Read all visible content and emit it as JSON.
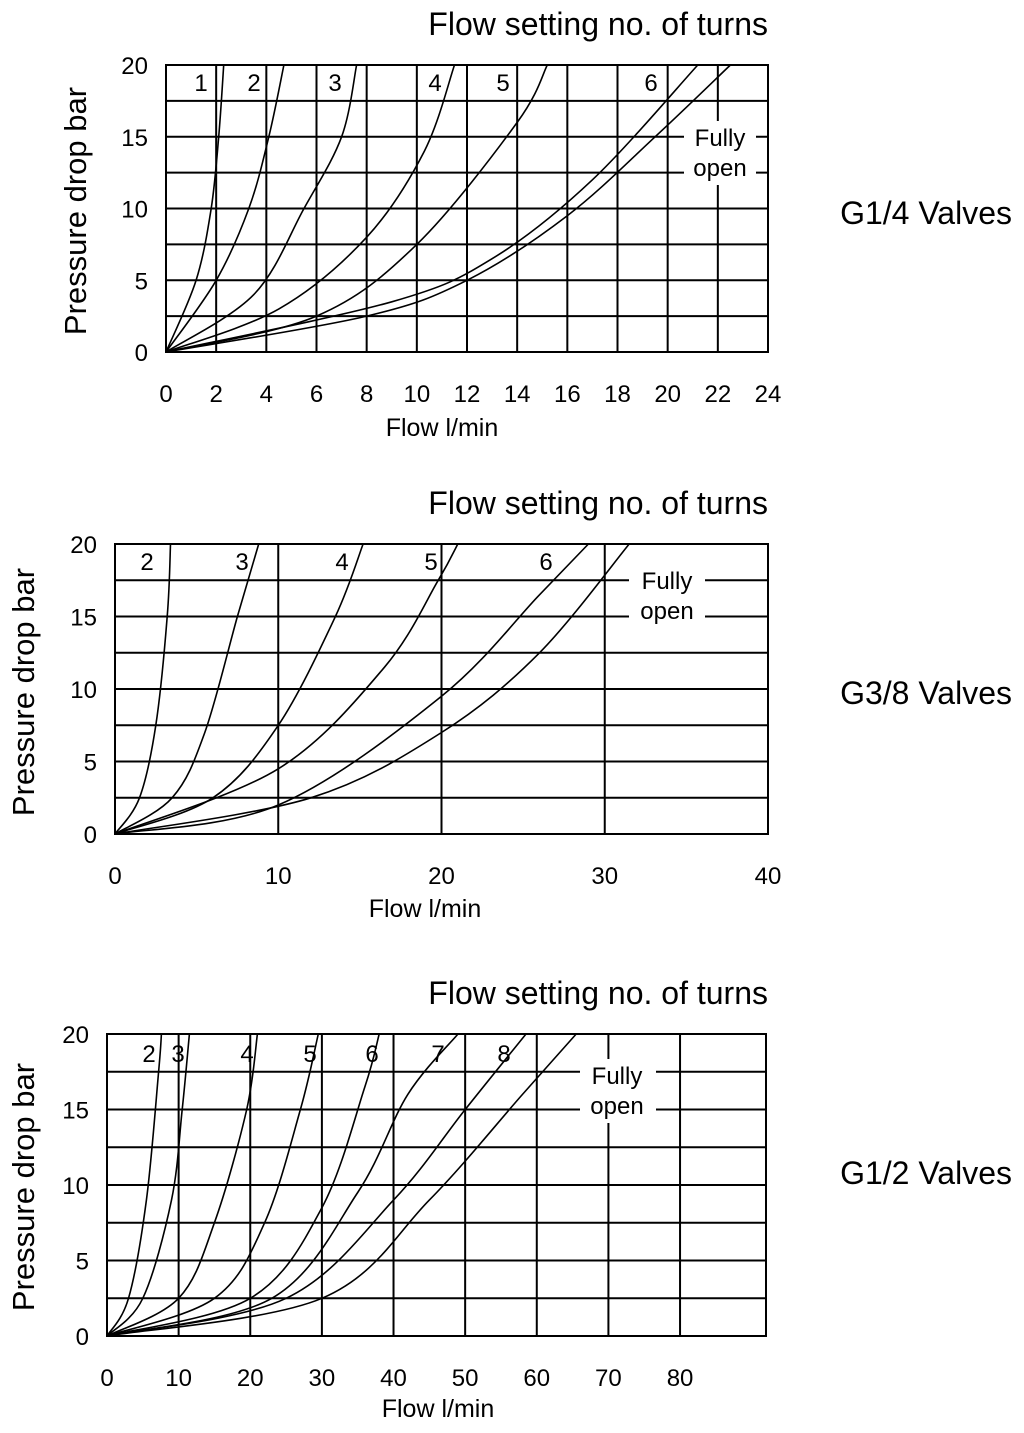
{
  "colors": {
    "background": "#ffffff",
    "ink": "#000000"
  },
  "chart_data": [
    {
      "type": "line",
      "panel_label": "G1/4 Valves",
      "title": "Flow setting no. of turns",
      "xlabel": "Flow l/min",
      "ylabel": "Pressure drop bar",
      "xlim": [
        0,
        24
      ],
      "ylim": [
        0,
        20
      ],
      "x_ticks": [
        0,
        2,
        4,
        6,
        8,
        10,
        12,
        14,
        16,
        18,
        20,
        22,
        24
      ],
      "y_ticks": [
        0,
        5,
        10,
        15,
        20
      ],
      "x_tick_labels": [
        "0",
        "2",
        "4",
        "6",
        "8",
        "10",
        "12",
        "14",
        "16",
        "18",
        "20",
        "22",
        "24"
      ],
      "y_tick_labels": [
        "0",
        "5",
        "10",
        "15",
        "20"
      ],
      "grid": true,
      "series": [
        {
          "name": "1",
          "points": [
            [
              0,
              0
            ],
            [
              1.2,
              5
            ],
            [
              1.8,
              10
            ],
            [
              2.1,
              15
            ],
            [
              2.3,
              20
            ]
          ]
        },
        {
          "name": "2",
          "points": [
            [
              0,
              0
            ],
            [
              2.0,
              5
            ],
            [
              3.3,
              10
            ],
            [
              4.1,
              15
            ],
            [
              4.7,
              20
            ]
          ]
        },
        {
          "name": "3",
          "points": [
            [
              0,
              0
            ],
            [
              3.5,
              4
            ],
            [
              5.5,
              10
            ],
            [
              7.0,
              15
            ],
            [
              7.6,
              20
            ]
          ]
        },
        {
          "name": "4",
          "points": [
            [
              0,
              0
            ],
            [
              4.5,
              3
            ],
            [
              8.0,
              8
            ],
            [
              10.3,
              14
            ],
            [
              11.5,
              20
            ]
          ]
        },
        {
          "name": "5",
          "points": [
            [
              0,
              0
            ],
            [
              6.0,
              2.5
            ],
            [
              10.0,
              7.5
            ],
            [
              14.0,
              16
            ],
            [
              15.2,
              20
            ]
          ]
        },
        {
          "name": "6",
          "points": [
            [
              0,
              0
            ],
            [
              9.0,
              3.5
            ],
            [
              13.0,
              6.5
            ],
            [
              17.0,
              12
            ],
            [
              21.2,
              20
            ]
          ]
        },
        {
          "name": "Fully open",
          "points": [
            [
              0,
              0
            ],
            [
              8.0,
              2.5
            ],
            [
              12.0,
              5
            ],
            [
              16.0,
              9.5
            ],
            [
              19.5,
              15
            ],
            [
              22.5,
              20
            ]
          ]
        }
      ],
      "curve_labels": [
        "1",
        "2",
        "3",
        "4",
        "5",
        "6"
      ],
      "fully_open_label": [
        "Fully",
        "open"
      ]
    },
    {
      "type": "line",
      "panel_label": "G3/8 Valves",
      "title": "Flow setting no. of turns",
      "xlabel": "Flow l/min",
      "ylabel": "Pressure drop bar",
      "xlim": [
        0,
        40
      ],
      "ylim": [
        0,
        20
      ],
      "x_ticks": [
        0,
        10,
        20,
        30,
        40
      ],
      "y_ticks": [
        0,
        5,
        10,
        15,
        20
      ],
      "x_tick_labels": [
        "0",
        "10",
        "20",
        "30",
        "40"
      ],
      "y_tick_labels": [
        "0",
        "5",
        "10",
        "15",
        "20"
      ],
      "grid": true,
      "series": [
        {
          "name": "2",
          "points": [
            [
              0,
              0
            ],
            [
              1.5,
              2.5
            ],
            [
              2.5,
              7.5
            ],
            [
              3.2,
              15
            ],
            [
              3.4,
              20
            ]
          ]
        },
        {
          "name": "3",
          "points": [
            [
              0,
              0
            ],
            [
              3.5,
              2.5
            ],
            [
              5.5,
              7.0
            ],
            [
              7.5,
              15
            ],
            [
              8.8,
              20
            ]
          ]
        },
        {
          "name": "4",
          "points": [
            [
              0,
              0
            ],
            [
              6.0,
              2.5
            ],
            [
              10.0,
              7.5
            ],
            [
              13.5,
              15
            ],
            [
              15.2,
              20
            ]
          ]
        },
        {
          "name": "5",
          "points": [
            [
              0,
              0
            ],
            [
              10.0,
              4.5
            ],
            [
              16.5,
              11.5
            ],
            [
              19.8,
              17.5
            ],
            [
              21.0,
              20
            ]
          ]
        },
        {
          "name": "6",
          "points": [
            [
              0,
              0
            ],
            [
              10.0,
              2.0
            ],
            [
              20.0,
              9.5
            ],
            [
              26.0,
              16.5
            ],
            [
              29.0,
              20
            ]
          ]
        },
        {
          "name": "Fully open",
          "points": [
            [
              0,
              0
            ],
            [
              12.0,
              2.5
            ],
            [
              20.0,
              7.0
            ],
            [
              26.0,
              12.5
            ],
            [
              31.5,
              20
            ]
          ]
        }
      ],
      "curve_labels": [
        "2",
        "3",
        "4",
        "5",
        "6"
      ],
      "fully_open_label": [
        "Fully",
        "open"
      ]
    },
    {
      "type": "line",
      "panel_label": "G1/2 Valves",
      "title": "Flow setting no. of turns",
      "xlabel": "Flow l/min",
      "ylabel": "Pressure drop bar",
      "xlim": [
        0,
        92
      ],
      "ylim": [
        0,
        20
      ],
      "x_ticks": [
        0,
        10,
        20,
        30,
        40,
        50,
        60,
        70,
        80
      ],
      "y_ticks": [
        0,
        5,
        10,
        15,
        20
      ],
      "x_tick_labels": [
        "0",
        "10",
        "20",
        "30",
        "40",
        "50",
        "60",
        "70",
        "80"
      ],
      "y_tick_labels": [
        "0",
        "5",
        "10",
        "15",
        "20"
      ],
      "grid": true,
      "series": [
        {
          "name": "2",
          "points": [
            [
              0,
              0
            ],
            [
              3.0,
              2.5
            ],
            [
              5.5,
              9
            ],
            [
              7.2,
              17.5
            ],
            [
              7.6,
              20
            ]
          ]
        },
        {
          "name": "3",
          "points": [
            [
              0,
              0
            ],
            [
              5.0,
              2.5
            ],
            [
              9.0,
              9
            ],
            [
              10.5,
              15
            ],
            [
              11.5,
              20
            ]
          ]
        },
        {
          "name": "4",
          "points": [
            [
              0,
              0
            ],
            [
              10.0,
              2.5
            ],
            [
              15.0,
              7.5
            ],
            [
              19.5,
              15
            ],
            [
              21.0,
              20
            ]
          ]
        },
        {
          "name": "5",
          "points": [
            [
              0,
              0
            ],
            [
              15.0,
              2.5
            ],
            [
              22.0,
              7.5
            ],
            [
              27.0,
              15
            ],
            [
              29.5,
              20
            ]
          ]
        },
        {
          "name": "6",
          "points": [
            [
              0,
              0
            ],
            [
              20.0,
              2.5
            ],
            [
              30.0,
              8.5
            ],
            [
              36.0,
              16.5
            ],
            [
              38.0,
              20
            ]
          ]
        },
        {
          "name": "7",
          "points": [
            [
              0,
              0
            ],
            [
              23.0,
              2.5
            ],
            [
              35.0,
              9.5
            ],
            [
              42.0,
              16
            ],
            [
              49.0,
              20
            ]
          ]
        },
        {
          "name": "8",
          "points": [
            [
              0,
              0
            ],
            [
              25.0,
              2.5
            ],
            [
              40.0,
              9.0
            ],
            [
              50.0,
              15
            ],
            [
              58.5,
              20
            ]
          ]
        },
        {
          "name": "Fully open",
          "points": [
            [
              0,
              0
            ],
            [
              30.0,
              2.5
            ],
            [
              45.0,
              9.0
            ],
            [
              58.0,
              16
            ],
            [
              65.5,
              20
            ]
          ]
        }
      ],
      "curve_labels": [
        "2",
        "3",
        "4",
        "5",
        "6",
        "7",
        "8"
      ],
      "fully_open_label": [
        "Fully",
        "open"
      ]
    }
  ]
}
